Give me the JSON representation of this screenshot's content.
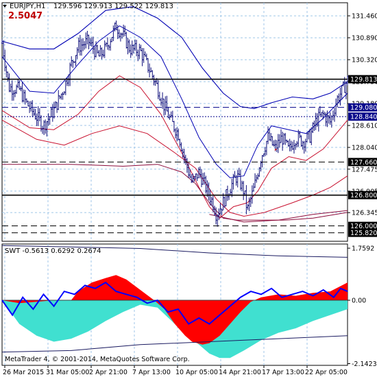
{
  "chart_data": [
    {
      "type": "line",
      "subtype": "candlestick",
      "symbol_header": "EURJPY,H1",
      "ohlc_header": "129.596 129.913 129.522 129.813",
      "overlay_value": "2.5047",
      "ylim": [
        125.6,
        131.8
      ],
      "y_ticks": [
        "131.460",
        "130.890",
        "130.320",
        "129.750",
        "129.180",
        "128.610",
        "128.040",
        "127.475",
        "126.905",
        "126.345"
      ],
      "price_tags": [
        {
          "label": "129.813",
          "value": 129.813,
          "style": "solid",
          "color": "#000000"
        },
        {
          "label": "129.080",
          "value": 129.08,
          "style": "dashed",
          "color": "#00008b"
        },
        {
          "label": "128.840",
          "value": 128.84,
          "style": "dotted",
          "color": "#00008b"
        },
        {
          "label": "127.660",
          "value": 127.66,
          "style": "dashed",
          "color": "#000000"
        },
        {
          "label": "126.800",
          "value": 126.8,
          "style": "solid",
          "color": "#000000"
        },
        {
          "label": "126.000",
          "value": 126.0,
          "style": "dashed",
          "color": "#000000"
        },
        {
          "label": "125.820",
          "value": 125.82,
          "style": "dashed",
          "color": "#000000"
        }
      ],
      "x_labels": [
        "26 Mar 2015",
        "31 Mar 05:00",
        "2 Apr 21:00",
        "7 Apr 13:00",
        "10 Apr 05:00",
        "14 Apr 21:00",
        "17 Apr 13:00",
        "22 Apr 05:00"
      ],
      "price_path": [
        [
          0,
          130.75
        ],
        [
          0.02,
          129.6
        ],
        [
          0.05,
          129.55
        ],
        [
          0.07,
          129.2
        ],
        [
          0.09,
          128.95
        ],
        [
          0.12,
          128.6
        ],
        [
          0.15,
          129.0
        ],
        [
          0.18,
          129.6
        ],
        [
          0.2,
          130.2
        ],
        [
          0.22,
          130.65
        ],
        [
          0.25,
          130.8
        ],
        [
          0.28,
          130.4
        ],
        [
          0.3,
          130.6
        ],
        [
          0.33,
          131.2
        ],
        [
          0.35,
          130.95
        ],
        [
          0.37,
          130.6
        ],
        [
          0.4,
          130.55
        ],
        [
          0.43,
          130.0
        ],
        [
          0.45,
          129.6
        ],
        [
          0.47,
          129.1
        ],
        [
          0.49,
          128.7
        ],
        [
          0.51,
          128.4
        ],
        [
          0.53,
          127.7
        ],
        [
          0.55,
          127.1
        ],
        [
          0.57,
          127.4
        ],
        [
          0.59,
          127.0
        ],
        [
          0.61,
          126.6
        ],
        [
          0.62,
          126.3
        ],
        [
          0.64,
          126.6
        ],
        [
          0.66,
          127.0
        ],
        [
          0.68,
          127.3
        ],
        [
          0.7,
          126.9
        ],
        [
          0.71,
          126.4
        ],
        [
          0.73,
          127.0
        ],
        [
          0.75,
          127.8
        ],
        [
          0.77,
          128.3
        ],
        [
          0.79,
          128.0
        ],
        [
          0.81,
          128.3
        ],
        [
          0.83,
          127.95
        ],
        [
          0.85,
          128.3
        ],
        [
          0.87,
          128.2
        ],
        [
          0.89,
          128.3
        ],
        [
          0.91,
          128.75
        ],
        [
          0.93,
          128.9
        ],
        [
          0.95,
          128.7
        ],
        [
          0.97,
          129.3
        ],
        [
          0.99,
          129.6
        ],
        [
          1.0,
          129.8
        ]
      ],
      "upper_band_outer": [
        [
          0,
          130.8
        ],
        [
          0.08,
          130.6
        ],
        [
          0.15,
          130.6
        ],
        [
          0.22,
          131.0
        ],
        [
          0.3,
          131.6
        ],
        [
          0.38,
          131.7
        ],
        [
          0.45,
          131.4
        ],
        [
          0.52,
          130.9
        ],
        [
          0.58,
          130.1
        ],
        [
          0.64,
          129.45
        ],
        [
          0.69,
          129.1
        ],
        [
          0.73,
          129.05
        ],
        [
          0.78,
          129.2
        ],
        [
          0.84,
          129.35
        ],
        [
          0.9,
          129.3
        ],
        [
          0.95,
          129.45
        ],
        [
          1.0,
          129.75
        ]
      ],
      "upper_band_inner": [
        [
          0,
          130.4
        ],
        [
          0.08,
          129.5
        ],
        [
          0.15,
          129.45
        ],
        [
          0.22,
          130.2
        ],
        [
          0.28,
          130.8
        ],
        [
          0.34,
          131.2
        ],
        [
          0.4,
          130.9
        ],
        [
          0.46,
          130.4
        ],
        [
          0.52,
          129.3
        ],
        [
          0.57,
          128.3
        ],
        [
          0.62,
          127.6
        ],
        [
          0.66,
          127.25
        ],
        [
          0.7,
          127.3
        ],
        [
          0.74,
          128.1
        ],
        [
          0.78,
          128.6
        ],
        [
          0.83,
          128.5
        ],
        [
          0.88,
          128.4
        ],
        [
          0.93,
          128.8
        ],
        [
          1.0,
          129.45
        ]
      ],
      "lower_band_inner": [
        [
          0,
          129.0
        ],
        [
          0.08,
          128.55
        ],
        [
          0.15,
          128.5
        ],
        [
          0.22,
          128.9
        ],
        [
          0.28,
          129.5
        ],
        [
          0.34,
          129.9
        ],
        [
          0.4,
          129.6
        ],
        [
          0.46,
          128.9
        ],
        [
          0.52,
          127.9
        ],
        [
          0.57,
          127.0
        ],
        [
          0.6,
          126.5
        ],
        [
          0.63,
          126.2
        ],
        [
          0.67,
          126.5
        ],
        [
          0.71,
          126.6
        ],
        [
          0.74,
          126.9
        ],
        [
          0.78,
          127.5
        ],
        [
          0.83,
          127.8
        ],
        [
          0.88,
          127.7
        ],
        [
          0.93,
          128.0
        ],
        [
          1.0,
          128.75
        ]
      ],
      "lower_band_outer": [
        [
          0,
          128.75
        ],
        [
          0.1,
          128.25
        ],
        [
          0.18,
          128.1
        ],
        [
          0.26,
          128.4
        ],
        [
          0.34,
          128.6
        ],
        [
          0.42,
          128.4
        ],
        [
          0.5,
          127.9
        ],
        [
          0.56,
          127.5
        ],
        [
          0.62,
          126.7
        ],
        [
          0.66,
          126.35
        ],
        [
          0.7,
          126.25
        ],
        [
          0.76,
          126.35
        ],
        [
          0.84,
          126.6
        ],
        [
          0.9,
          126.8
        ],
        [
          0.95,
          127.0
        ],
        [
          1.0,
          127.3
        ]
      ],
      "lower_envelope": [
        [
          0,
          127.6
        ],
        [
          0.2,
          127.6
        ],
        [
          0.35,
          127.55
        ],
        [
          0.45,
          127.6
        ],
        [
          0.52,
          127.4
        ],
        [
          0.56,
          127.1
        ],
        [
          0.6,
          126.6
        ],
        [
          0.64,
          126.2
        ],
        [
          0.68,
          126.15
        ],
        [
          0.74,
          126.15
        ],
        [
          0.82,
          126.15
        ],
        [
          0.9,
          126.2
        ],
        [
          1.0,
          126.35
        ]
      ],
      "bottom_envelope": [
        [
          0.6,
          126.3
        ],
        [
          0.7,
          126.1
        ],
        [
          0.8,
          126.15
        ],
        [
          0.9,
          126.3
        ],
        [
          1.0,
          126.4
        ]
      ]
    },
    {
      "type": "area",
      "indicator_header": "SWT -0.5613 0.6292 0.2674",
      "ylim": [
        -2.2,
        1.9
      ],
      "y_ticks": [
        "1.7592",
        "0.00",
        "-2.1423"
      ],
      "copyright": "MetaTrader 4, © 2001-2014, MetaQuotes Software Corp.",
      "red_area": [
        [
          0,
          0.0
        ],
        [
          0.05,
          -0.1
        ],
        [
          0.1,
          -0.05
        ],
        [
          0.15,
          0.0
        ],
        [
          0.2,
          0.0
        ],
        [
          0.22,
          0.3
        ],
        [
          0.26,
          0.6
        ],
        [
          0.3,
          0.75
        ],
        [
          0.33,
          0.85
        ],
        [
          0.36,
          0.7
        ],
        [
          0.4,
          0.35
        ],
        [
          0.44,
          0.0
        ],
        [
          0.47,
          -0.3
        ],
        [
          0.5,
          -0.8
        ],
        [
          0.53,
          -1.2
        ],
        [
          0.55,
          -1.4
        ],
        [
          0.58,
          -1.5
        ],
        [
          0.6,
          -1.45
        ],
        [
          0.63,
          -1.2
        ],
        [
          0.66,
          -0.8
        ],
        [
          0.69,
          -0.4
        ],
        [
          0.72,
          -0.05
        ],
        [
          0.75,
          0.1
        ],
        [
          0.8,
          0.2
        ],
        [
          0.85,
          0.15
        ],
        [
          0.9,
          0.25
        ],
        [
          0.95,
          0.3
        ],
        [
          1.0,
          0.6
        ]
      ],
      "cyan_area": [
        [
          0,
          0.0
        ],
        [
          0.05,
          -0.8
        ],
        [
          0.1,
          -1.2
        ],
        [
          0.15,
          -1.4
        ],
        [
          0.2,
          -1.3
        ],
        [
          0.25,
          -1.05
        ],
        [
          0.3,
          -0.7
        ],
        [
          0.35,
          -0.4
        ],
        [
          0.4,
          -0.15
        ],
        [
          0.45,
          -0.25
        ],
        [
          0.5,
          -0.8
        ],
        [
          0.55,
          -1.3
        ],
        [
          0.6,
          -1.8
        ],
        [
          0.63,
          -1.95
        ],
        [
          0.66,
          -1.95
        ],
        [
          0.7,
          -1.7
        ],
        [
          0.75,
          -1.35
        ],
        [
          0.8,
          -1.1
        ],
        [
          0.85,
          -0.95
        ],
        [
          0.9,
          -0.7
        ],
        [
          0.95,
          -0.5
        ],
        [
          1.0,
          -0.3
        ]
      ],
      "signal_line": [
        [
          0,
          0.0
        ],
        [
          0.03,
          -0.5
        ],
        [
          0.06,
          0.1
        ],
        [
          0.09,
          -0.3
        ],
        [
          0.12,
          0.2
        ],
        [
          0.15,
          -0.2
        ],
        [
          0.18,
          0.3
        ],
        [
          0.21,
          0.2
        ],
        [
          0.24,
          0.5
        ],
        [
          0.27,
          0.4
        ],
        [
          0.3,
          0.6
        ],
        [
          0.33,
          0.3
        ],
        [
          0.36,
          0.2
        ],
        [
          0.39,
          0.1
        ],
        [
          0.42,
          -0.1
        ],
        [
          0.45,
          0.0
        ],
        [
          0.48,
          -0.4
        ],
        [
          0.51,
          -0.3
        ],
        [
          0.54,
          -0.8
        ],
        [
          0.57,
          -0.6
        ],
        [
          0.6,
          -0.8
        ],
        [
          0.63,
          -0.5
        ],
        [
          0.66,
          -0.2
        ],
        [
          0.69,
          0.1
        ],
        [
          0.72,
          0.3
        ],
        [
          0.75,
          0.2
        ],
        [
          0.78,
          0.4
        ],
        [
          0.81,
          0.1
        ],
        [
          0.84,
          0.2
        ],
        [
          0.87,
          0.3
        ],
        [
          0.9,
          0.15
        ],
        [
          0.93,
          0.35
        ],
        [
          0.96,
          0.1
        ],
        [
          0.98,
          0.4
        ],
        [
          1.0,
          0.3
        ]
      ],
      "upper_level": [
        [
          0,
          1.85
        ],
        [
          0.2,
          1.8
        ],
        [
          0.4,
          1.75
        ],
        [
          0.6,
          1.6
        ],
        [
          0.8,
          1.5
        ],
        [
          1.0,
          1.45
        ]
      ],
      "lower_level": [
        [
          0,
          -1.75
        ],
        [
          0.2,
          -1.7
        ],
        [
          0.4,
          -1.5
        ],
        [
          0.6,
          -1.4
        ],
        [
          0.8,
          -1.3
        ],
        [
          1.0,
          -1.2
        ]
      ]
    }
  ]
}
